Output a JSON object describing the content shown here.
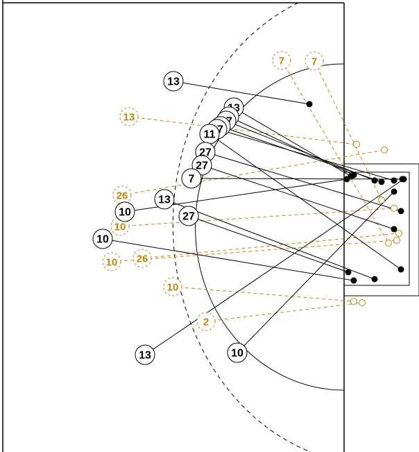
{
  "colors": {
    "background": "#ffffff",
    "ink": "#000000",
    "secondary": "#b8860b"
  },
  "court": {
    "lines": "solid black boundary lines, solid inner arc, dashed outer arc, rectangular goal area on right edge"
  },
  "primary_markers": [
    {
      "label": "13",
      "kind": "circle-number"
    },
    {
      "label": "13",
      "kind": "circle-number"
    },
    {
      "label": "7",
      "kind": "circle-number"
    },
    {
      "label": "27",
      "kind": "circle-number"
    },
    {
      "label": "7",
      "kind": "circle-number"
    },
    {
      "label": "17",
      "kind": "circle-number"
    },
    {
      "label": "11",
      "kind": "circle-number"
    },
    {
      "label": "27",
      "kind": "circle-number"
    },
    {
      "label": "27",
      "kind": "circle-number"
    },
    {
      "label": "7",
      "kind": "circle-number"
    },
    {
      "label": "13",
      "kind": "circle-number"
    },
    {
      "label": "10",
      "kind": "circle-number"
    },
    {
      "label": "27",
      "kind": "circle-number"
    },
    {
      "label": "10",
      "kind": "circle-number"
    },
    {
      "label": "13",
      "kind": "circle-number"
    },
    {
      "label": "10",
      "kind": "circle-number"
    }
  ],
  "secondary_markers": [
    {
      "label": "7",
      "kind": "dashed-circle-number"
    },
    {
      "label": "7",
      "kind": "dashed-circle-number"
    },
    {
      "label": "13",
      "kind": "dashed-circle-number"
    },
    {
      "label": "26",
      "kind": "dashed-circle-number"
    },
    {
      "label": "10",
      "kind": "dashed-circle-number"
    },
    {
      "label": "10",
      "kind": "dashed-circle-number"
    },
    {
      "label": "26",
      "kind": "dashed-circle-number"
    },
    {
      "label": "10",
      "kind": "dashed-circle-number"
    },
    {
      "label": "2",
      "kind": "dashed-circle-number"
    }
  ]
}
